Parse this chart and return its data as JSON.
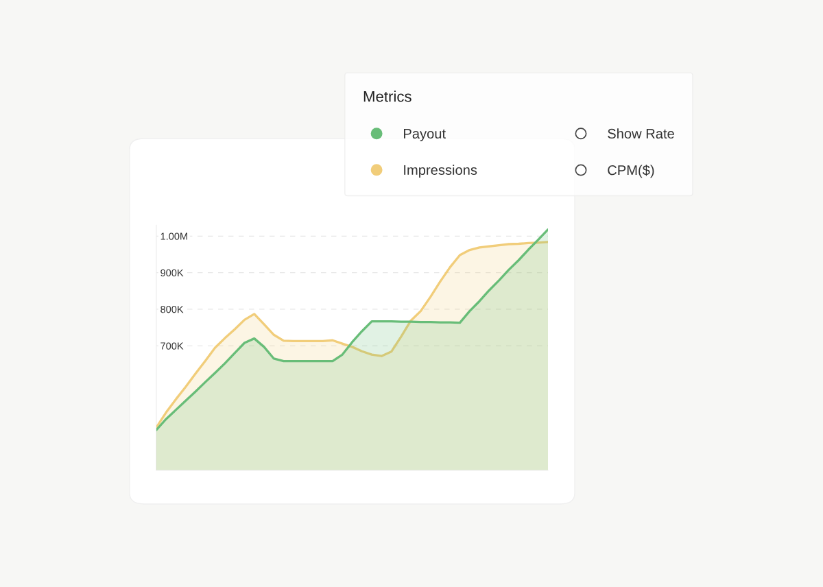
{
  "chart_data": {
    "type": "area",
    "categories": [
      null,
      null,
      null,
      null,
      null,
      null,
      null,
      null,
      null,
      null,
      null,
      null,
      null,
      null,
      null,
      null,
      null,
      null,
      null,
      null,
      null,
      null,
      null,
      null,
      null,
      null,
      null,
      null,
      null,
      null,
      null,
      null,
      null,
      null,
      null,
      null,
      null,
      null,
      null,
      null,
      null
    ],
    "series": [
      {
        "name": "Payout",
        "color": "#68bd78",
        "values": [
          470000,
          500000,
          525000,
          550000,
          575000,
          601000,
          626000,
          652000,
          680000,
          708000,
          720000,
          697000,
          665000,
          658000,
          658000,
          658000,
          658000,
          658000,
          658000,
          676000,
          710000,
          740000,
          767000,
          767000,
          767000,
          766000,
          766000,
          765000,
          765000,
          764000,
          764000,
          763000,
          795000,
          822000,
          852000,
          879000,
          908000,
          934000,
          963000,
          990000,
          1018000
        ]
      },
      {
        "name": "Impressions",
        "color": "#f1cd7a",
        "values": [
          477000,
          518000,
          554000,
          588000,
          624000,
          659000,
          695000,
          721000,
          745000,
          771000,
          787000,
          759000,
          730000,
          714000,
          713000,
          713000,
          713000,
          713000,
          715000,
          706000,
          697000,
          685000,
          676000,
          672000,
          684000,
          725000,
          769000,
          795000,
          834000,
          876000,
          915000,
          948000,
          962000,
          969000,
          972000,
          975000,
          978000,
          979000,
          981000,
          982000,
          984000
        ]
      },
      {
        "name": "Show Rate",
        "values": [
          null,
          null,
          null,
          null,
          null,
          null,
          null,
          null,
          null,
          null,
          null,
          null,
          null,
          null,
          null,
          null,
          null,
          null,
          null,
          null,
          null,
          null,
          null,
          null,
          null,
          null,
          null,
          null,
          null,
          null,
          null,
          null,
          null,
          null,
          null,
          null,
          null,
          null,
          null,
          null,
          null
        ]
      },
      {
        "name": "CPM($)",
        "values": [
          null,
          null,
          null,
          null,
          null,
          null,
          null,
          null,
          null,
          null,
          null,
          null,
          null,
          null,
          null,
          null,
          null,
          null,
          null,
          null,
          null,
          null,
          null,
          null,
          null,
          null,
          null,
          null,
          null,
          null,
          null,
          null,
          null,
          null,
          null,
          null,
          null,
          null,
          null,
          null,
          null
        ]
      }
    ],
    "ylim": [
      360000,
      1030000
    ],
    "yticks": [
      {
        "value": 700000,
        "label": "700K"
      },
      {
        "value": 800000,
        "label": "800K"
      },
      {
        "value": 900000,
        "label": "900K"
      },
      {
        "value": 1000000,
        "label": "1.00M"
      }
    ],
    "tick_labels": "y",
    "grid": "y",
    "legend": "top right",
    "legend_title": "Metrics"
  }
}
